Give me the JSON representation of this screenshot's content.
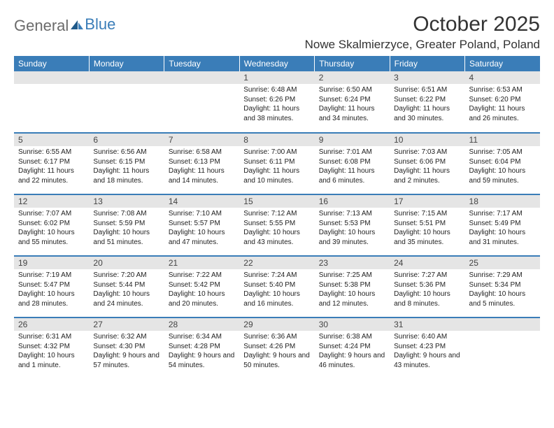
{
  "brand": {
    "general": "General",
    "blue": "Blue"
  },
  "title": "October 2025",
  "location": "Nowe Skalmierzyce, Greater Poland, Poland",
  "headers": [
    "Sunday",
    "Monday",
    "Tuesday",
    "Wednesday",
    "Thursday",
    "Friday",
    "Saturday"
  ],
  "colors": {
    "header_bg": "#3a7db8",
    "header_text": "#ffffff",
    "daynum_bg": "#e5e5e5",
    "border": "#3a7db8",
    "text": "#222222",
    "logo_gray": "#6b6b6b",
    "logo_blue": "#3a7db8"
  },
  "fonts": {
    "title_size": 30,
    "location_size": 17,
    "header_size": 12,
    "daynum_size": 12,
    "body_size": 10
  },
  "weeks": [
    [
      {
        "num": "",
        "sunrise": "",
        "sunset": "",
        "daylight": ""
      },
      {
        "num": "",
        "sunrise": "",
        "sunset": "",
        "daylight": ""
      },
      {
        "num": "",
        "sunrise": "",
        "sunset": "",
        "daylight": ""
      },
      {
        "num": "1",
        "sunrise": "Sunrise: 6:48 AM",
        "sunset": "Sunset: 6:26 PM",
        "daylight": "Daylight: 11 hours and 38 minutes."
      },
      {
        "num": "2",
        "sunrise": "Sunrise: 6:50 AM",
        "sunset": "Sunset: 6:24 PM",
        "daylight": "Daylight: 11 hours and 34 minutes."
      },
      {
        "num": "3",
        "sunrise": "Sunrise: 6:51 AM",
        "sunset": "Sunset: 6:22 PM",
        "daylight": "Daylight: 11 hours and 30 minutes."
      },
      {
        "num": "4",
        "sunrise": "Sunrise: 6:53 AM",
        "sunset": "Sunset: 6:20 PM",
        "daylight": "Daylight: 11 hours and 26 minutes."
      }
    ],
    [
      {
        "num": "5",
        "sunrise": "Sunrise: 6:55 AM",
        "sunset": "Sunset: 6:17 PM",
        "daylight": "Daylight: 11 hours and 22 minutes."
      },
      {
        "num": "6",
        "sunrise": "Sunrise: 6:56 AM",
        "sunset": "Sunset: 6:15 PM",
        "daylight": "Daylight: 11 hours and 18 minutes."
      },
      {
        "num": "7",
        "sunrise": "Sunrise: 6:58 AM",
        "sunset": "Sunset: 6:13 PM",
        "daylight": "Daylight: 11 hours and 14 minutes."
      },
      {
        "num": "8",
        "sunrise": "Sunrise: 7:00 AM",
        "sunset": "Sunset: 6:11 PM",
        "daylight": "Daylight: 11 hours and 10 minutes."
      },
      {
        "num": "9",
        "sunrise": "Sunrise: 7:01 AM",
        "sunset": "Sunset: 6:08 PM",
        "daylight": "Daylight: 11 hours and 6 minutes."
      },
      {
        "num": "10",
        "sunrise": "Sunrise: 7:03 AM",
        "sunset": "Sunset: 6:06 PM",
        "daylight": "Daylight: 11 hours and 2 minutes."
      },
      {
        "num": "11",
        "sunrise": "Sunrise: 7:05 AM",
        "sunset": "Sunset: 6:04 PM",
        "daylight": "Daylight: 10 hours and 59 minutes."
      }
    ],
    [
      {
        "num": "12",
        "sunrise": "Sunrise: 7:07 AM",
        "sunset": "Sunset: 6:02 PM",
        "daylight": "Daylight: 10 hours and 55 minutes."
      },
      {
        "num": "13",
        "sunrise": "Sunrise: 7:08 AM",
        "sunset": "Sunset: 5:59 PM",
        "daylight": "Daylight: 10 hours and 51 minutes."
      },
      {
        "num": "14",
        "sunrise": "Sunrise: 7:10 AM",
        "sunset": "Sunset: 5:57 PM",
        "daylight": "Daylight: 10 hours and 47 minutes."
      },
      {
        "num": "15",
        "sunrise": "Sunrise: 7:12 AM",
        "sunset": "Sunset: 5:55 PM",
        "daylight": "Daylight: 10 hours and 43 minutes."
      },
      {
        "num": "16",
        "sunrise": "Sunrise: 7:13 AM",
        "sunset": "Sunset: 5:53 PM",
        "daylight": "Daylight: 10 hours and 39 minutes."
      },
      {
        "num": "17",
        "sunrise": "Sunrise: 7:15 AM",
        "sunset": "Sunset: 5:51 PM",
        "daylight": "Daylight: 10 hours and 35 minutes."
      },
      {
        "num": "18",
        "sunrise": "Sunrise: 7:17 AM",
        "sunset": "Sunset: 5:49 PM",
        "daylight": "Daylight: 10 hours and 31 minutes."
      }
    ],
    [
      {
        "num": "19",
        "sunrise": "Sunrise: 7:19 AM",
        "sunset": "Sunset: 5:47 PM",
        "daylight": "Daylight: 10 hours and 28 minutes."
      },
      {
        "num": "20",
        "sunrise": "Sunrise: 7:20 AM",
        "sunset": "Sunset: 5:44 PM",
        "daylight": "Daylight: 10 hours and 24 minutes."
      },
      {
        "num": "21",
        "sunrise": "Sunrise: 7:22 AM",
        "sunset": "Sunset: 5:42 PM",
        "daylight": "Daylight: 10 hours and 20 minutes."
      },
      {
        "num": "22",
        "sunrise": "Sunrise: 7:24 AM",
        "sunset": "Sunset: 5:40 PM",
        "daylight": "Daylight: 10 hours and 16 minutes."
      },
      {
        "num": "23",
        "sunrise": "Sunrise: 7:25 AM",
        "sunset": "Sunset: 5:38 PM",
        "daylight": "Daylight: 10 hours and 12 minutes."
      },
      {
        "num": "24",
        "sunrise": "Sunrise: 7:27 AM",
        "sunset": "Sunset: 5:36 PM",
        "daylight": "Daylight: 10 hours and 8 minutes."
      },
      {
        "num": "25",
        "sunrise": "Sunrise: 7:29 AM",
        "sunset": "Sunset: 5:34 PM",
        "daylight": "Daylight: 10 hours and 5 minutes."
      }
    ],
    [
      {
        "num": "26",
        "sunrise": "Sunrise: 6:31 AM",
        "sunset": "Sunset: 4:32 PM",
        "daylight": "Daylight: 10 hours and 1 minute."
      },
      {
        "num": "27",
        "sunrise": "Sunrise: 6:32 AM",
        "sunset": "Sunset: 4:30 PM",
        "daylight": "Daylight: 9 hours and 57 minutes."
      },
      {
        "num": "28",
        "sunrise": "Sunrise: 6:34 AM",
        "sunset": "Sunset: 4:28 PM",
        "daylight": "Daylight: 9 hours and 54 minutes."
      },
      {
        "num": "29",
        "sunrise": "Sunrise: 6:36 AM",
        "sunset": "Sunset: 4:26 PM",
        "daylight": "Daylight: 9 hours and 50 minutes."
      },
      {
        "num": "30",
        "sunrise": "Sunrise: 6:38 AM",
        "sunset": "Sunset: 4:24 PM",
        "daylight": "Daylight: 9 hours and 46 minutes."
      },
      {
        "num": "31",
        "sunrise": "Sunrise: 6:40 AM",
        "sunset": "Sunset: 4:23 PM",
        "daylight": "Daylight: 9 hours and 43 minutes."
      },
      {
        "num": "",
        "sunrise": "",
        "sunset": "",
        "daylight": ""
      }
    ]
  ]
}
